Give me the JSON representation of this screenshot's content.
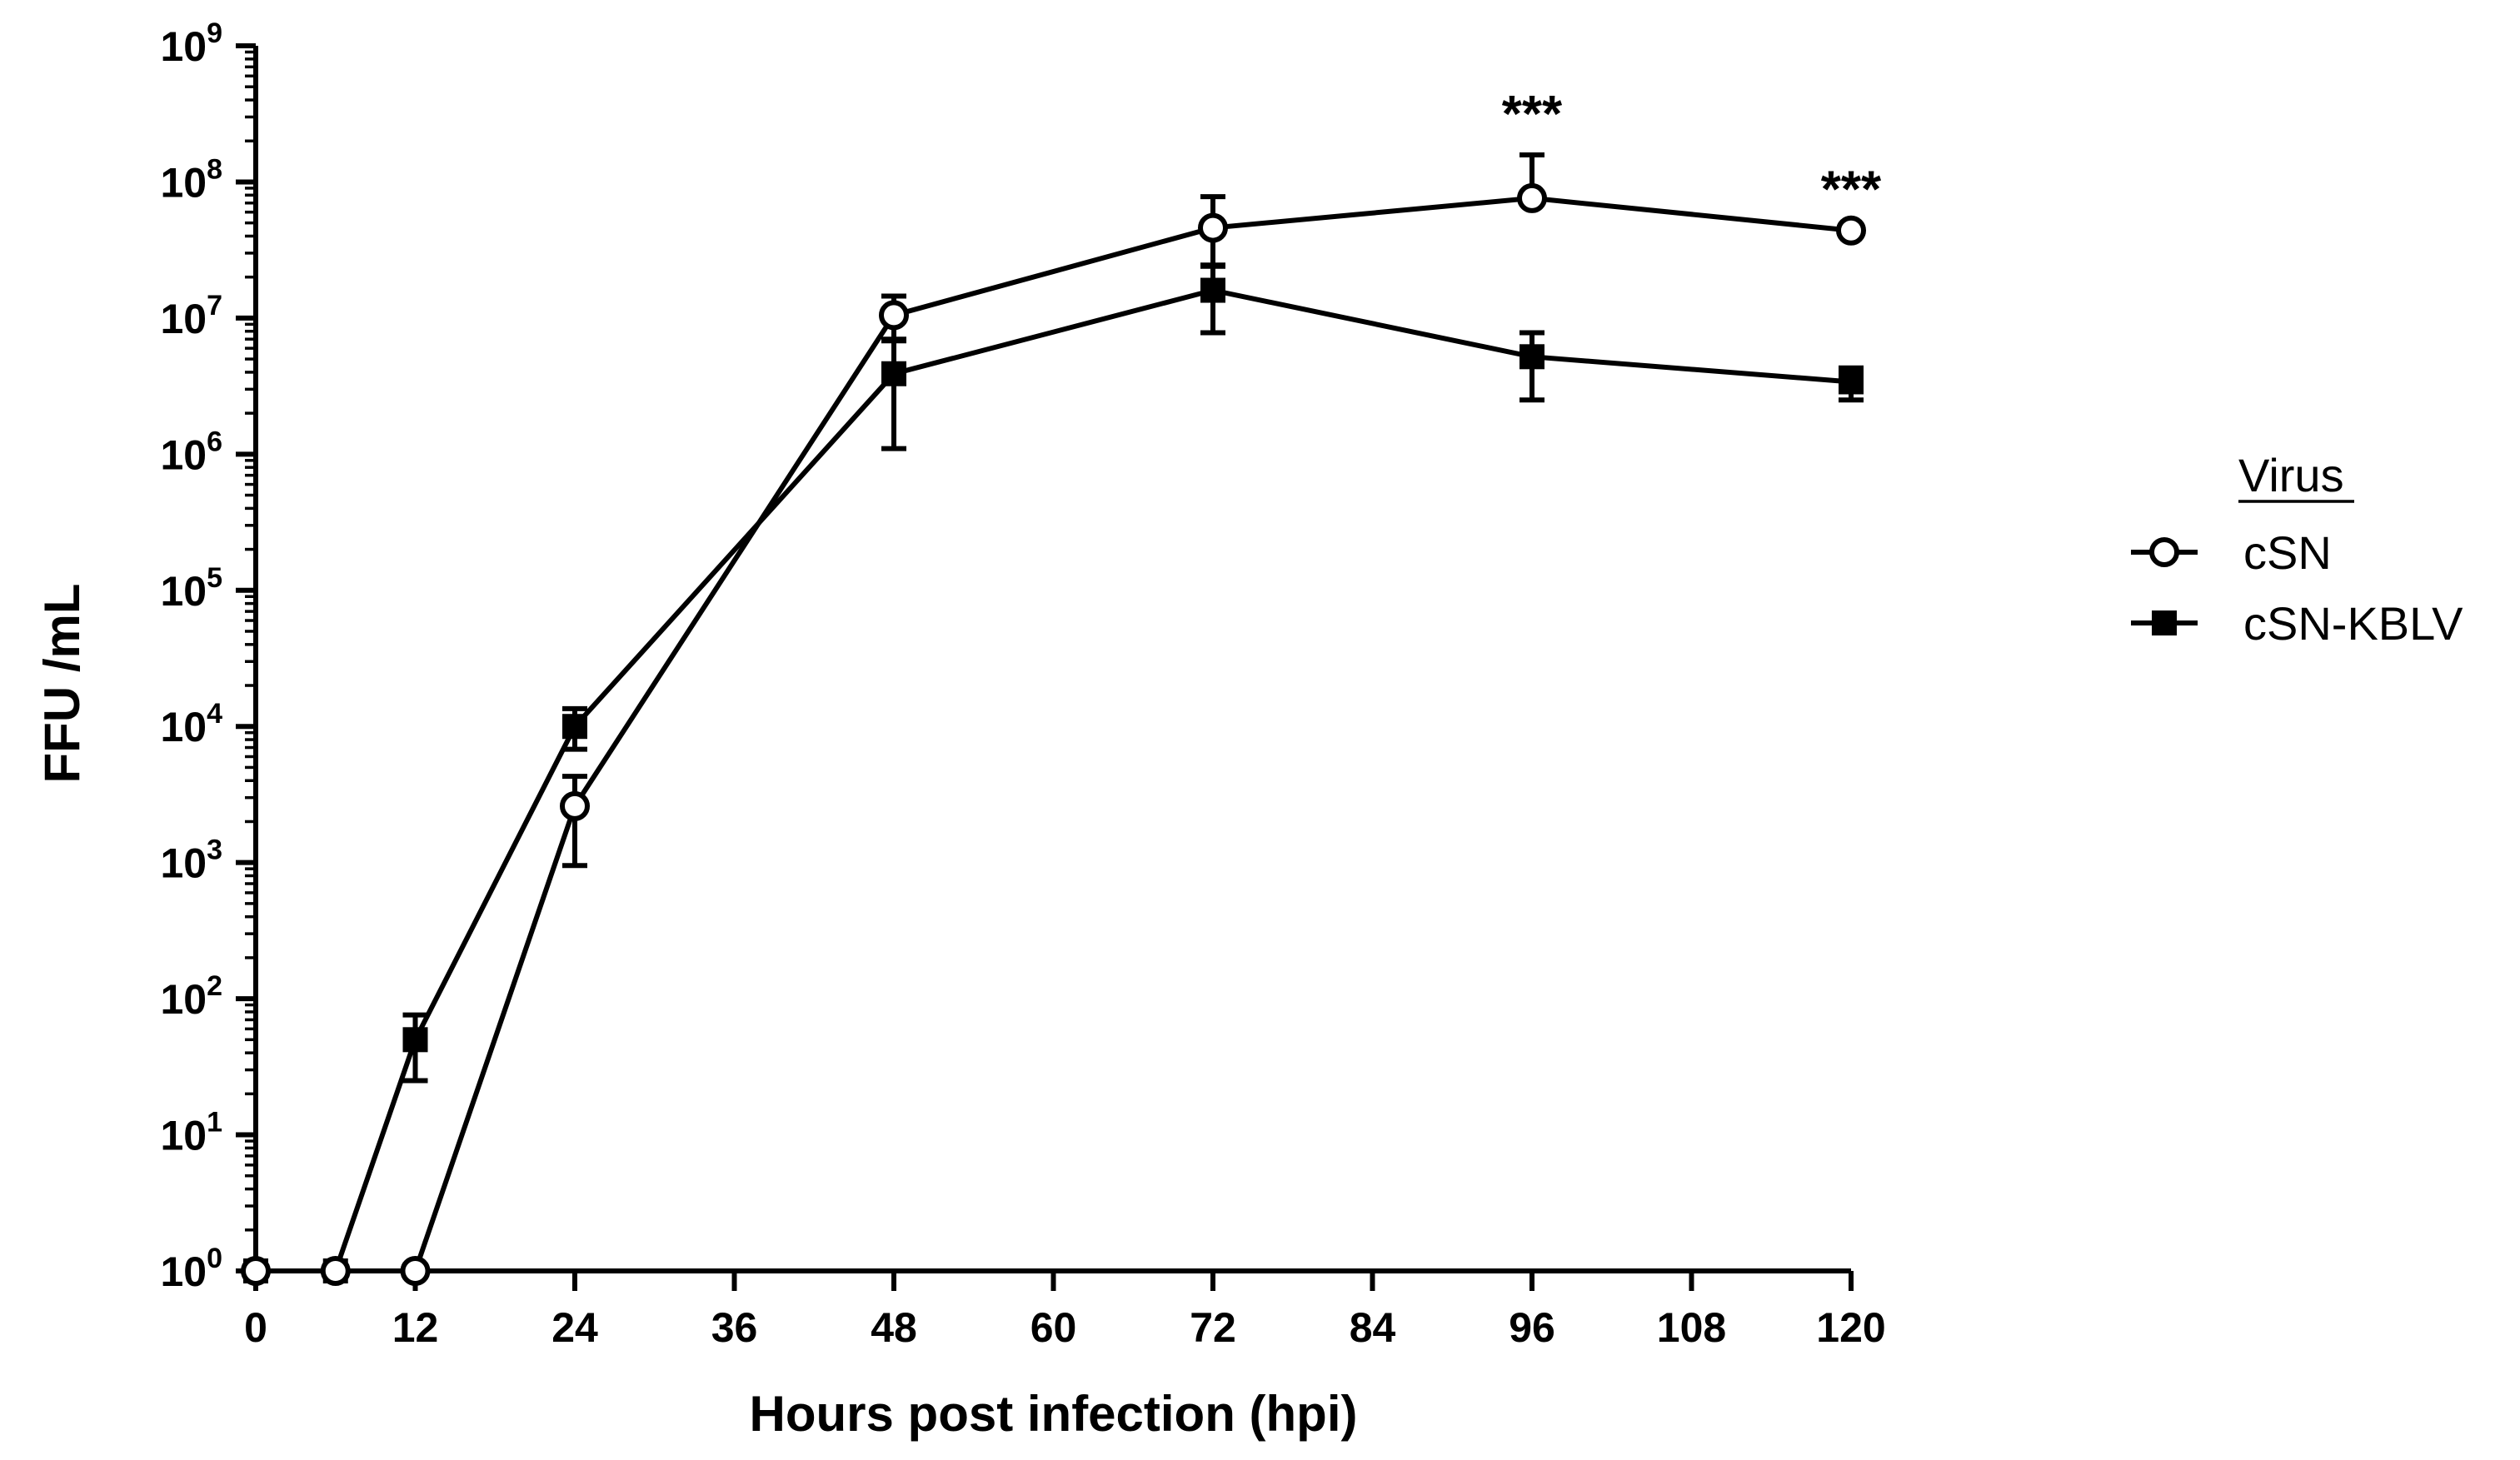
{
  "chart_data": {
    "type": "line",
    "title": "",
    "xlabel": "Hours post infection (hpi)",
    "ylabel": "FFU /mL",
    "xlim": [
      0,
      120
    ],
    "xticks": [
      0,
      12,
      24,
      36,
      48,
      60,
      72,
      84,
      96,
      108,
      120
    ],
    "yscale": "log",
    "ylim": [
      1,
      1000000000
    ],
    "yticks": [
      {
        "base": "10",
        "exp": "0"
      },
      {
        "base": "10",
        "exp": "1"
      },
      {
        "base": "10",
        "exp": "2"
      },
      {
        "base": "10",
        "exp": "3"
      },
      {
        "base": "10",
        "exp": "4"
      },
      {
        "base": "10",
        "exp": "5"
      },
      {
        "base": "10",
        "exp": "6"
      },
      {
        "base": "10",
        "exp": "7"
      },
      {
        "base": "10",
        "exp": "8"
      },
      {
        "base": "10",
        "exp": "9"
      }
    ],
    "grid": false,
    "legend": {
      "title": "Virus",
      "position": "right"
    },
    "series": [
      {
        "name": "cSN",
        "marker": "open-circle",
        "points": [
          {
            "x": 0,
            "y": 1
          },
          {
            "x": 6,
            "y": 1
          },
          {
            "x": 12,
            "y": 1
          },
          {
            "x": 24,
            "y": 2600,
            "err_low": 950,
            "err_high": 4300
          },
          {
            "x": 48,
            "y": 10500000,
            "err_low": 7000000,
            "err_high": 14500000
          },
          {
            "x": 72,
            "y": 46000000,
            "err_low": 24000000,
            "err_high": 78000000
          },
          {
            "x": 96,
            "y": 76000000,
            "err_low": 0,
            "err_high": 158000000
          },
          {
            "x": 120,
            "y": 44000000
          }
        ]
      },
      {
        "name": "cSN-KBLV",
        "marker": "filled-square",
        "points": [
          {
            "x": 0,
            "y": 1
          },
          {
            "x": 6,
            "y": 1
          },
          {
            "x": 12,
            "y": 50,
            "err_low": 25,
            "err_high": 76
          },
          {
            "x": 24,
            "y": 10000,
            "err_low": 6800,
            "err_high": 13500
          },
          {
            "x": 48,
            "y": 3900000,
            "err_low": 1100000,
            "err_high": 6800000
          },
          {
            "x": 72,
            "y": 16000000,
            "err_low": 7800000,
            "err_high": 24500000
          },
          {
            "x": 96,
            "y": 5200000,
            "err_low": 2500000,
            "err_high": 7800000
          },
          {
            "x": 120,
            "y": 3400000,
            "err_low": 2500000,
            "err_high": 4300000
          }
        ]
      }
    ],
    "annotations": [
      {
        "x": 96,
        "y": 158000000,
        "text": "***"
      },
      {
        "x": 120,
        "y": 44000000,
        "text": "***"
      }
    ]
  }
}
